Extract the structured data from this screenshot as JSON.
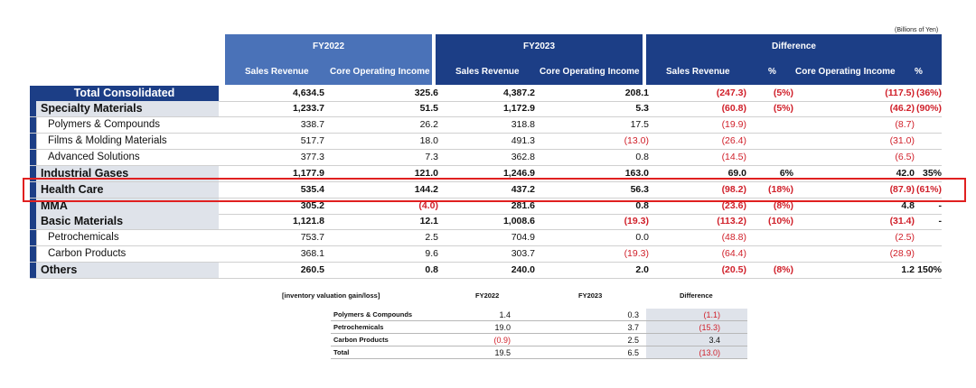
{
  "units": "(Billions of Yen)",
  "headers": {
    "fy2022": "FY2022",
    "fy2023": "FY2023",
    "difference": "Difference",
    "sales_revenue": "Sales Revenue",
    "core_operating_income": "Core Operating Income",
    "pct": "%"
  },
  "rows": [
    {
      "label": "Total Consolidated",
      "v": [
        "4,634.5",
        "325.6",
        "4,387.2",
        "208.1",
        "(247.3)",
        "(5%)",
        "(117.5)",
        "(36%)"
      ]
    },
    {
      "label": "Specialty Materials",
      "v": [
        "1,233.7",
        "51.5",
        "1,172.9",
        "5.3",
        "(60.8)",
        "(5%)",
        "(46.2)",
        "(90%)"
      ]
    },
    {
      "label": "Polymers & Compounds",
      "v": [
        "338.7",
        "26.2",
        "318.8",
        "17.5",
        "(19.9)",
        "",
        "(8.7)",
        ""
      ]
    },
    {
      "label": "Films & Molding Materials",
      "v": [
        "517.7",
        "18.0",
        "491.3",
        "(13.0)",
        "(26.4)",
        "",
        "(31.0)",
        ""
      ]
    },
    {
      "label": "Advanced Solutions",
      "v": [
        "377.3",
        "7.3",
        "362.8",
        "0.8",
        "(14.5)",
        "",
        "(6.5)",
        ""
      ]
    },
    {
      "label": "Industrial Gases",
      "v": [
        "1,177.9",
        "121.0",
        "1,246.9",
        "163.0",
        "69.0",
        "6%",
        "42.0",
        "35%"
      ]
    },
    {
      "label": "Health Care",
      "v": [
        "535.4",
        "144.2",
        "437.2",
        "56.3",
        "(98.2)",
        "(18%)",
        "(87.9)",
        "(61%)"
      ]
    },
    {
      "label": "MMA",
      "v": [
        "305.2",
        "(4.0)",
        "281.6",
        "0.8",
        "(23.6)",
        "(8%)",
        "4.8",
        "-"
      ]
    },
    {
      "label": "Basic Materials",
      "v": [
        "1,121.8",
        "12.1",
        "1,008.6",
        "(19.3)",
        "(113.2)",
        "(10%)",
        "(31.4)",
        "-"
      ]
    },
    {
      "label": "Petrochemicals",
      "v": [
        "753.7",
        "2.5",
        "704.9",
        "0.0",
        "(48.8)",
        "",
        "(2.5)",
        ""
      ]
    },
    {
      "label": "Carbon Products",
      "v": [
        "368.1",
        "9.6",
        "303.7",
        "(19.3)",
        "(64.4)",
        "",
        "(28.9)",
        ""
      ]
    },
    {
      "label": "Others",
      "v": [
        "260.5",
        "0.8",
        "240.0",
        "2.0",
        "(20.5)",
        "(8%)",
        "1.2",
        "150%"
      ]
    }
  ],
  "inventory": {
    "title": "[inventory valuation gain/loss]",
    "col_fy2022": "FY2022",
    "col_fy2023": "FY2023",
    "col_diff": "Difference",
    "rows": [
      {
        "label": "Polymers & Compounds",
        "v": [
          "1.4",
          "0.3",
          "(1.1)"
        ]
      },
      {
        "label": "Petrochemicals",
        "v": [
          "19.0",
          "3.7",
          "(15.3)"
        ]
      },
      {
        "label": "Carbon Products",
        "v": [
          "(0.9)",
          "2.5",
          "3.4"
        ]
      },
      {
        "label": "Total",
        "v": [
          "19.5",
          "6.5",
          "(13.0)"
        ]
      }
    ]
  },
  "colors": {
    "header_light": "#4a72b8",
    "header_dark": "#1c3e86",
    "negative": "#d0202a",
    "highlight_border": "#e02020",
    "label_bg": "#dfe3ea"
  }
}
